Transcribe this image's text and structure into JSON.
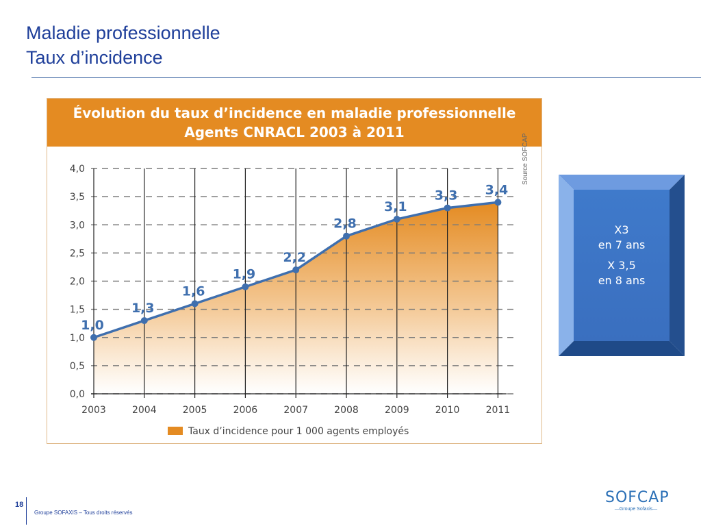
{
  "slide": {
    "title_line1": "Maladie professionnelle",
    "title_line2": "Taux d’incidence"
  },
  "colors": {
    "accent": "#e48b22",
    "line": "#3f6fae",
    "title": "#1f3f9a",
    "callout": "#3f7acb"
  },
  "chart_data": {
    "type": "area",
    "title": "Évolution du taux d’incidence en maladie professionnelle",
    "subtitle": "Agents CNRACL 2003 à 2011",
    "x": [
      "2003",
      "2004",
      "2005",
      "2006",
      "2007",
      "2008",
      "2009",
      "2010",
      "2011"
    ],
    "values": [
      1.0,
      1.3,
      1.6,
      1.9,
      2.2,
      2.8,
      3.1,
      3.3,
      3.4
    ],
    "data_labels": [
      "1,0",
      "1,3",
      "1,6",
      "1,9",
      "2,2",
      "2,8",
      "3,1",
      "3,3",
      "3,4"
    ],
    "ylim": [
      0,
      4.0
    ],
    "y_ticks": [
      "0,0",
      "0,5",
      "1,0",
      "1,5",
      "2,0",
      "2,5",
      "3,0",
      "3,5",
      "4,0"
    ],
    "y_tick_values": [
      0,
      0.5,
      1.0,
      1.5,
      2.0,
      2.5,
      3.0,
      3.5,
      4.0
    ],
    "legend": "Taux d’incidence pour 1 000 agents employés",
    "legend_position": "bottom",
    "grid": true,
    "source": "Source SOFCAP"
  },
  "callout": {
    "line1": "X3",
    "line2": "en 7 ans",
    "line3": "X 3,5",
    "line4": "en 8 ans"
  },
  "footer": {
    "page_number": "18",
    "text": "Groupe SOFAXIS – Tous droits réservés",
    "logo_main": "SOFCAP",
    "logo_sub": "—Groupe Sofaxis—"
  }
}
